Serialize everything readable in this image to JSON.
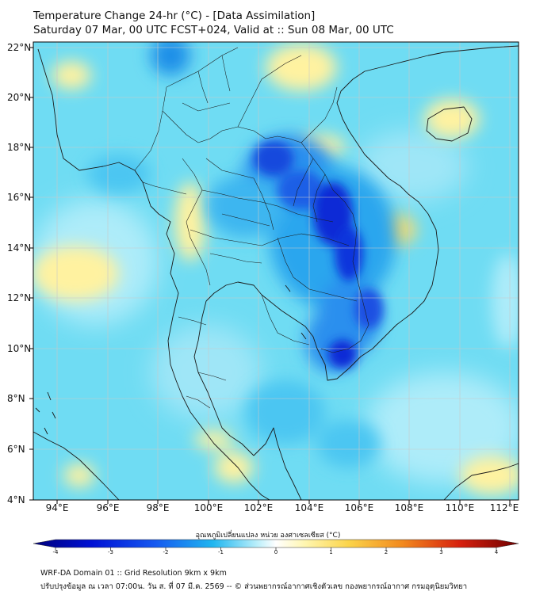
{
  "header": {
    "title": "Temperature Change 24-hr (°C) - [Data Assimilation]",
    "subtitle": "Saturday 07 Mar, 00 UTC FCST+024, Valid at :: Sun 08 Mar, 00 UTC"
  },
  "axes": {
    "lat_labels": [
      "22°N",
      "20°N",
      "18°N",
      "16°N",
      "14°N",
      "12°N",
      "10°N",
      "8°N",
      "6°N",
      "4°N"
    ],
    "lon_labels": [
      "94°E",
      "96°E",
      "98°E",
      "100°E",
      "102°E",
      "104°E",
      "106°E",
      "108°E",
      "110°E",
      "112°E"
    ]
  },
  "colorbar": {
    "title": "อุณหภูมิเปลี่ยนแปลง หน่วย องศาเซลเซียส (°C)",
    "ticks": [
      "-4",
      "-3",
      "-2",
      "-1",
      "0",
      "1",
      "2",
      "3",
      "4"
    ],
    "min": -4,
    "max": 4
  },
  "footer": {
    "line1": "WRF-DA Domain 01 :: Grid Resolution 9km x 9km",
    "line2": "ปรับปรุงข้อมูล ณ เวลา 07:00น. วัน ส. ที่ 07 มี.ค. 2569 -- © ส่วนพยากรณ์อากาศเชิงตัวเลข กองพยากรณ์อากาศ กรมอุตุนิยมวิทยา"
  },
  "colors": {
    "background": "#6fdcf3",
    "cooling_strong": "#0a2bd6",
    "cooling_mid": "#2aa6ee",
    "warming_light": "#fff2a0",
    "warming_mid": "#f2d14a",
    "coastline": "#1a1a1a",
    "grid": "#c9c9c9"
  }
}
